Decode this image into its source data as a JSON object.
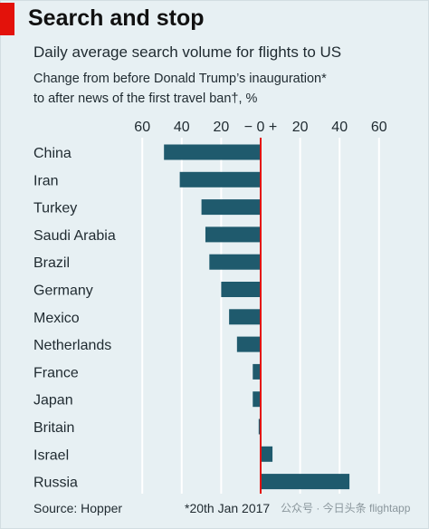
{
  "colors": {
    "background": "#e7f0f3",
    "bar": "#1f5a6d",
    "zero_line": "#e3120b",
    "grid": "#ffffff",
    "accent": "#e3120b"
  },
  "title": "Search and stop",
  "subtitle": "Daily average search volume for flights to US",
  "description_lines": [
    "Change from before Donald Trump’s inauguration*",
    "to after news of the first travel ban†, %"
  ],
  "source": "Source: Hopper",
  "note": "*20th Jan 2017",
  "watermark": "公众号 · 今日头条 flightapp",
  "chart_data": {
    "type": "bar",
    "orientation": "horizontal",
    "categories": [
      "China",
      "Iran",
      "Turkey",
      "Saudi Arabia",
      "Brazil",
      "Germany",
      "Mexico",
      "Netherlands",
      "France",
      "Japan",
      "Britain",
      "Israel",
      "Russia"
    ],
    "values": [
      -49,
      -41,
      -30,
      -28,
      -26,
      -20,
      -16,
      -12,
      -4,
      -4,
      -1,
      6,
      45
    ],
    "xlim": [
      -60,
      60
    ],
    "tick_values": [
      -60,
      -40,
      -20,
      0,
      20,
      40,
      60
    ],
    "tick_labels": [
      "60",
      "40",
      "20",
      "−  0  +",
      "20",
      "40",
      "60"
    ],
    "grid": true,
    "tick_position": "top"
  }
}
